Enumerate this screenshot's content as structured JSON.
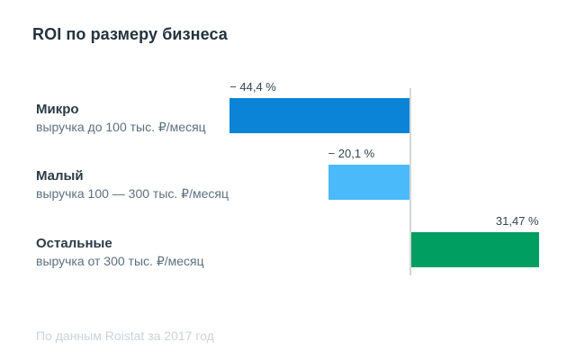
{
  "header": {
    "title": "ROI по размеру бизнеса"
  },
  "footer": {
    "source_note": "По данным Roistat за 2017 год"
  },
  "chart_data": {
    "type": "bar",
    "orientation": "horizontal",
    "title": "ROI по размеру бизнеса",
    "value_unit": "%",
    "xlim": [
      -50,
      35
    ],
    "zero_line": true,
    "grid": false,
    "legend": false,
    "categories": [
      "Микро",
      "Малый",
      "Остальные"
    ],
    "bars": [
      {
        "name": "Микро",
        "subtitle": "выручка до 100 тыс. ₽/месяц",
        "value": -44.4,
        "value_label": "− 44,4 %",
        "color": "#0b84d8"
      },
      {
        "name": "Малый",
        "subtitle": "выручка 100 — 300 тыс. ₽/месяц",
        "value": -20.1,
        "value_label": "− 20,1 %",
        "color": "#4bbafa"
      },
      {
        "name": "Остальные",
        "subtitle": "выручка от 300 тыс. ₽/месяц",
        "value": 31.47,
        "value_label": "31,47 %",
        "color": "#009e60"
      }
    ],
    "source": "По данным Roistat за 2017 год",
    "colors": {
      "axis_line": "#d3d7d7",
      "title_text": "#24333e",
      "category_text": "#2b3b46",
      "subtitle_text": "#5d7080",
      "value_text": "#36454f",
      "source_text": "#ccd2d9"
    }
  }
}
